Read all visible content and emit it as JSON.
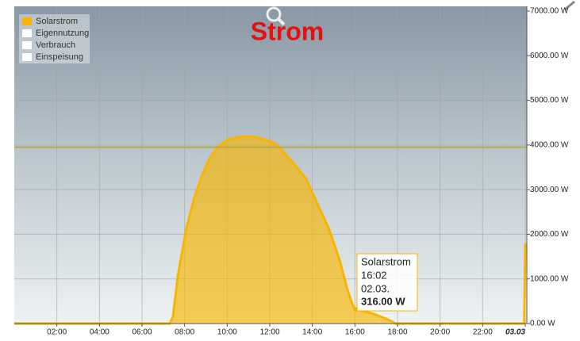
{
  "chart_data": {
    "type": "area",
    "title": "Strom",
    "x": [
      0,
      7.3,
      7.45,
      7.7,
      8.07,
      8.44,
      8.8,
      9.18,
      9.55,
      10.1,
      10.7,
      11.26,
      11.8,
      12.2,
      12.6,
      13.1,
      13.7,
      14.2,
      14.8,
      15.3,
      15.65,
      15.9,
      16.03,
      16.8,
      17.5,
      17.9,
      23.95,
      24
    ],
    "series": [
      {
        "name": "Solarstrom",
        "color": "#f7b500",
        "values": [
          0,
          0,
          150,
          1120,
          2100,
          2800,
          3300,
          3700,
          3960,
          4140,
          4190,
          4190,
          4120,
          4050,
          3870,
          3600,
          3250,
          2720,
          2100,
          1390,
          760,
          410,
          316,
          230,
          100,
          0,
          0,
          1800
        ]
      }
    ],
    "legend": [
      {
        "name": "Solarstrom",
        "color": "#f7b500"
      },
      {
        "name": "Eigennutzung",
        "color": "#ffffff"
      },
      {
        "name": "Verbrauch",
        "color": "#ffffff"
      },
      {
        "name": "Einspeisung",
        "color": "#ffffff"
      }
    ],
    "reference_line": {
      "value": 3950,
      "color": "#b5a94a"
    },
    "xlim": [
      0,
      24
    ],
    "xticks": [
      {
        "value": 2,
        "label": "02:00"
      },
      {
        "value": 4,
        "label": "04:00"
      },
      {
        "value": 6,
        "label": "06:00"
      },
      {
        "value": 8,
        "label": "08:00"
      },
      {
        "value": 10,
        "label": "10:00"
      },
      {
        "value": 12,
        "label": "12:00"
      },
      {
        "value": 14,
        "label": "14:00"
      },
      {
        "value": 16,
        "label": "16:00"
      },
      {
        "value": 18,
        "label": "18:00"
      },
      {
        "value": 20,
        "label": "20:00"
      },
      {
        "value": 22,
        "label": "22:00"
      },
      {
        "value": 24,
        "label": "03.03"
      }
    ],
    "ylim": [
      0,
      7000
    ],
    "yticks": [
      {
        "value": 0,
        "label": "0.00 W"
      },
      {
        "value": 1000,
        "label": "1000.00 W"
      },
      {
        "value": 2000,
        "label": "2000.00 W"
      },
      {
        "value": 3000,
        "label": "3000.00 W"
      },
      {
        "value": 4000,
        "label": "4000.00 W"
      },
      {
        "value": 5000,
        "label": "5000.00 W"
      },
      {
        "value": 6000,
        "label": "6000.00 W"
      },
      {
        "value": 7000,
        "label": "7000.00 W"
      }
    ],
    "grid": true,
    "tooltip": {
      "series": "Solarstrom",
      "time": "16:02",
      "date": "02.03.",
      "value": 316,
      "value_label": "316.00 W",
      "x": 16.03
    }
  }
}
